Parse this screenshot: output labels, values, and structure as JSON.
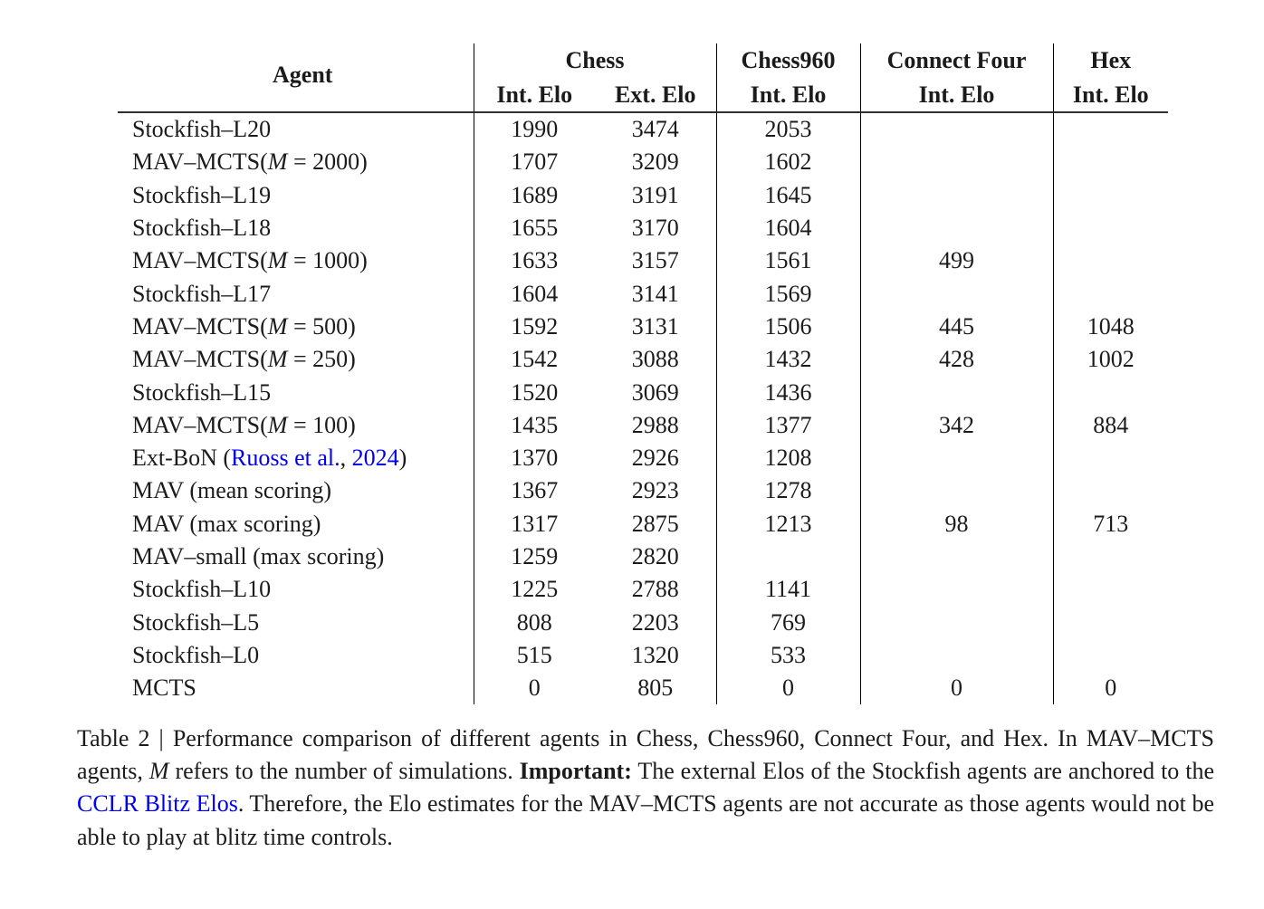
{
  "colors": {
    "link_blue": "#0000EE",
    "text": "#1b1b1b",
    "rule": "#000000"
  },
  "table": {
    "header": {
      "agent": "Agent",
      "chess": "Chess",
      "chess960": "Chess960",
      "connect_four": "Connect Four",
      "hex": "Hex",
      "int_elo": "Int. Elo",
      "ext_elo": "Ext. Elo"
    },
    "columns": [
      "Agent",
      "Chess Int. Elo",
      "Chess Ext. Elo",
      "Chess960 Int. Elo",
      "Connect Four Int. Elo",
      "Hex Int. Elo"
    ],
    "rows": [
      {
        "agent": [
          {
            "t": "Stockfish–L20"
          }
        ],
        "values": [
          "1990",
          "3474",
          "2053",
          "",
          ""
        ]
      },
      {
        "agent": [
          {
            "t": "MAV–MCTS("
          },
          {
            "t": "M",
            "style": "italic"
          },
          {
            "t": " = 2000)"
          }
        ],
        "values": [
          "1707",
          "3209",
          "1602",
          "",
          ""
        ]
      },
      {
        "agent": [
          {
            "t": "Stockfish–L19"
          }
        ],
        "values": [
          "1689",
          "3191",
          "1645",
          "",
          ""
        ]
      },
      {
        "agent": [
          {
            "t": "Stockfish–L18"
          }
        ],
        "values": [
          "1655",
          "3170",
          "1604",
          "",
          ""
        ]
      },
      {
        "agent": [
          {
            "t": "MAV–MCTS("
          },
          {
            "t": "M",
            "style": "italic"
          },
          {
            "t": " = 1000)"
          }
        ],
        "values": [
          "1633",
          "3157",
          "1561",
          "499",
          ""
        ]
      },
      {
        "agent": [
          {
            "t": "Stockfish–L17"
          }
        ],
        "values": [
          "1604",
          "3141",
          "1569",
          "",
          ""
        ]
      },
      {
        "agent": [
          {
            "t": "MAV–MCTS("
          },
          {
            "t": "M",
            "style": "italic"
          },
          {
            "t": " = 500)"
          }
        ],
        "values": [
          "1592",
          "3131",
          "1506",
          "445",
          "1048"
        ]
      },
      {
        "agent": [
          {
            "t": "MAV–MCTS("
          },
          {
            "t": "M",
            "style": "italic"
          },
          {
            "t": " = 250)"
          }
        ],
        "values": [
          "1542",
          "3088",
          "1432",
          "428",
          "1002"
        ]
      },
      {
        "agent": [
          {
            "t": "Stockfish–L15"
          }
        ],
        "values": [
          "1520",
          "3069",
          "1436",
          "",
          ""
        ]
      },
      {
        "agent": [
          {
            "t": "MAV–MCTS("
          },
          {
            "t": "M",
            "style": "italic"
          },
          {
            "t": " = 100)"
          }
        ],
        "values": [
          "1435",
          "2988",
          "1377",
          "342",
          "884"
        ]
      },
      {
        "agent": [
          {
            "t": "Ext-BoN ("
          },
          {
            "t": "Ruoss et al.",
            "style": "link",
            "name": "citation-link-ruoss"
          },
          {
            "t": ", "
          },
          {
            "t": "2024",
            "style": "link",
            "name": "citation-link-year"
          },
          {
            "t": ")"
          }
        ],
        "values": [
          "1370",
          "2926",
          "1208",
          "",
          ""
        ]
      },
      {
        "agent": [
          {
            "t": "MAV (mean scoring)"
          }
        ],
        "values": [
          "1367",
          "2923",
          "1278",
          "",
          ""
        ]
      },
      {
        "agent": [
          {
            "t": "MAV (max scoring)"
          }
        ],
        "values": [
          "1317",
          "2875",
          "1213",
          "98",
          "713"
        ]
      },
      {
        "agent": [
          {
            "t": "MAV–small (max scoring)"
          }
        ],
        "values": [
          "1259",
          "2820",
          "",
          "",
          ""
        ]
      },
      {
        "agent": [
          {
            "t": "Stockfish–L10"
          }
        ],
        "values": [
          "1225",
          "2788",
          "1141",
          "",
          ""
        ]
      },
      {
        "agent": [
          {
            "t": "Stockfish–L5"
          }
        ],
        "values": [
          "808",
          "2203",
          "769",
          "",
          ""
        ]
      },
      {
        "agent": [
          {
            "t": "Stockfish–L0"
          }
        ],
        "values": [
          "515",
          "1320",
          "533",
          "",
          ""
        ]
      },
      {
        "agent": [
          {
            "t": "MCTS"
          }
        ],
        "values": [
          "0",
          "805",
          "0",
          "0",
          "0"
        ]
      }
    ]
  },
  "caption": {
    "segments": [
      {
        "t": "Table 2 | Performance comparison of different agents in Chess, Chess960, Connect Four, and Hex. In MAV–MCTS agents, "
      },
      {
        "t": "M",
        "style": "italic"
      },
      {
        "t": " refers to the number of simulations. "
      },
      {
        "t": "Important:",
        "style": "bold"
      },
      {
        "t": " The external Elos of the Stockfish agents are anchored to the "
      },
      {
        "t": "CCLR Blitz Elos",
        "style": "link",
        "name": "cclr-blitz-elos-link"
      },
      {
        "t": ". Therefore, the Elo estimates for the MAV–MCTS agents are not accurate as those agents would not be able to play at blitz time controls."
      }
    ]
  }
}
